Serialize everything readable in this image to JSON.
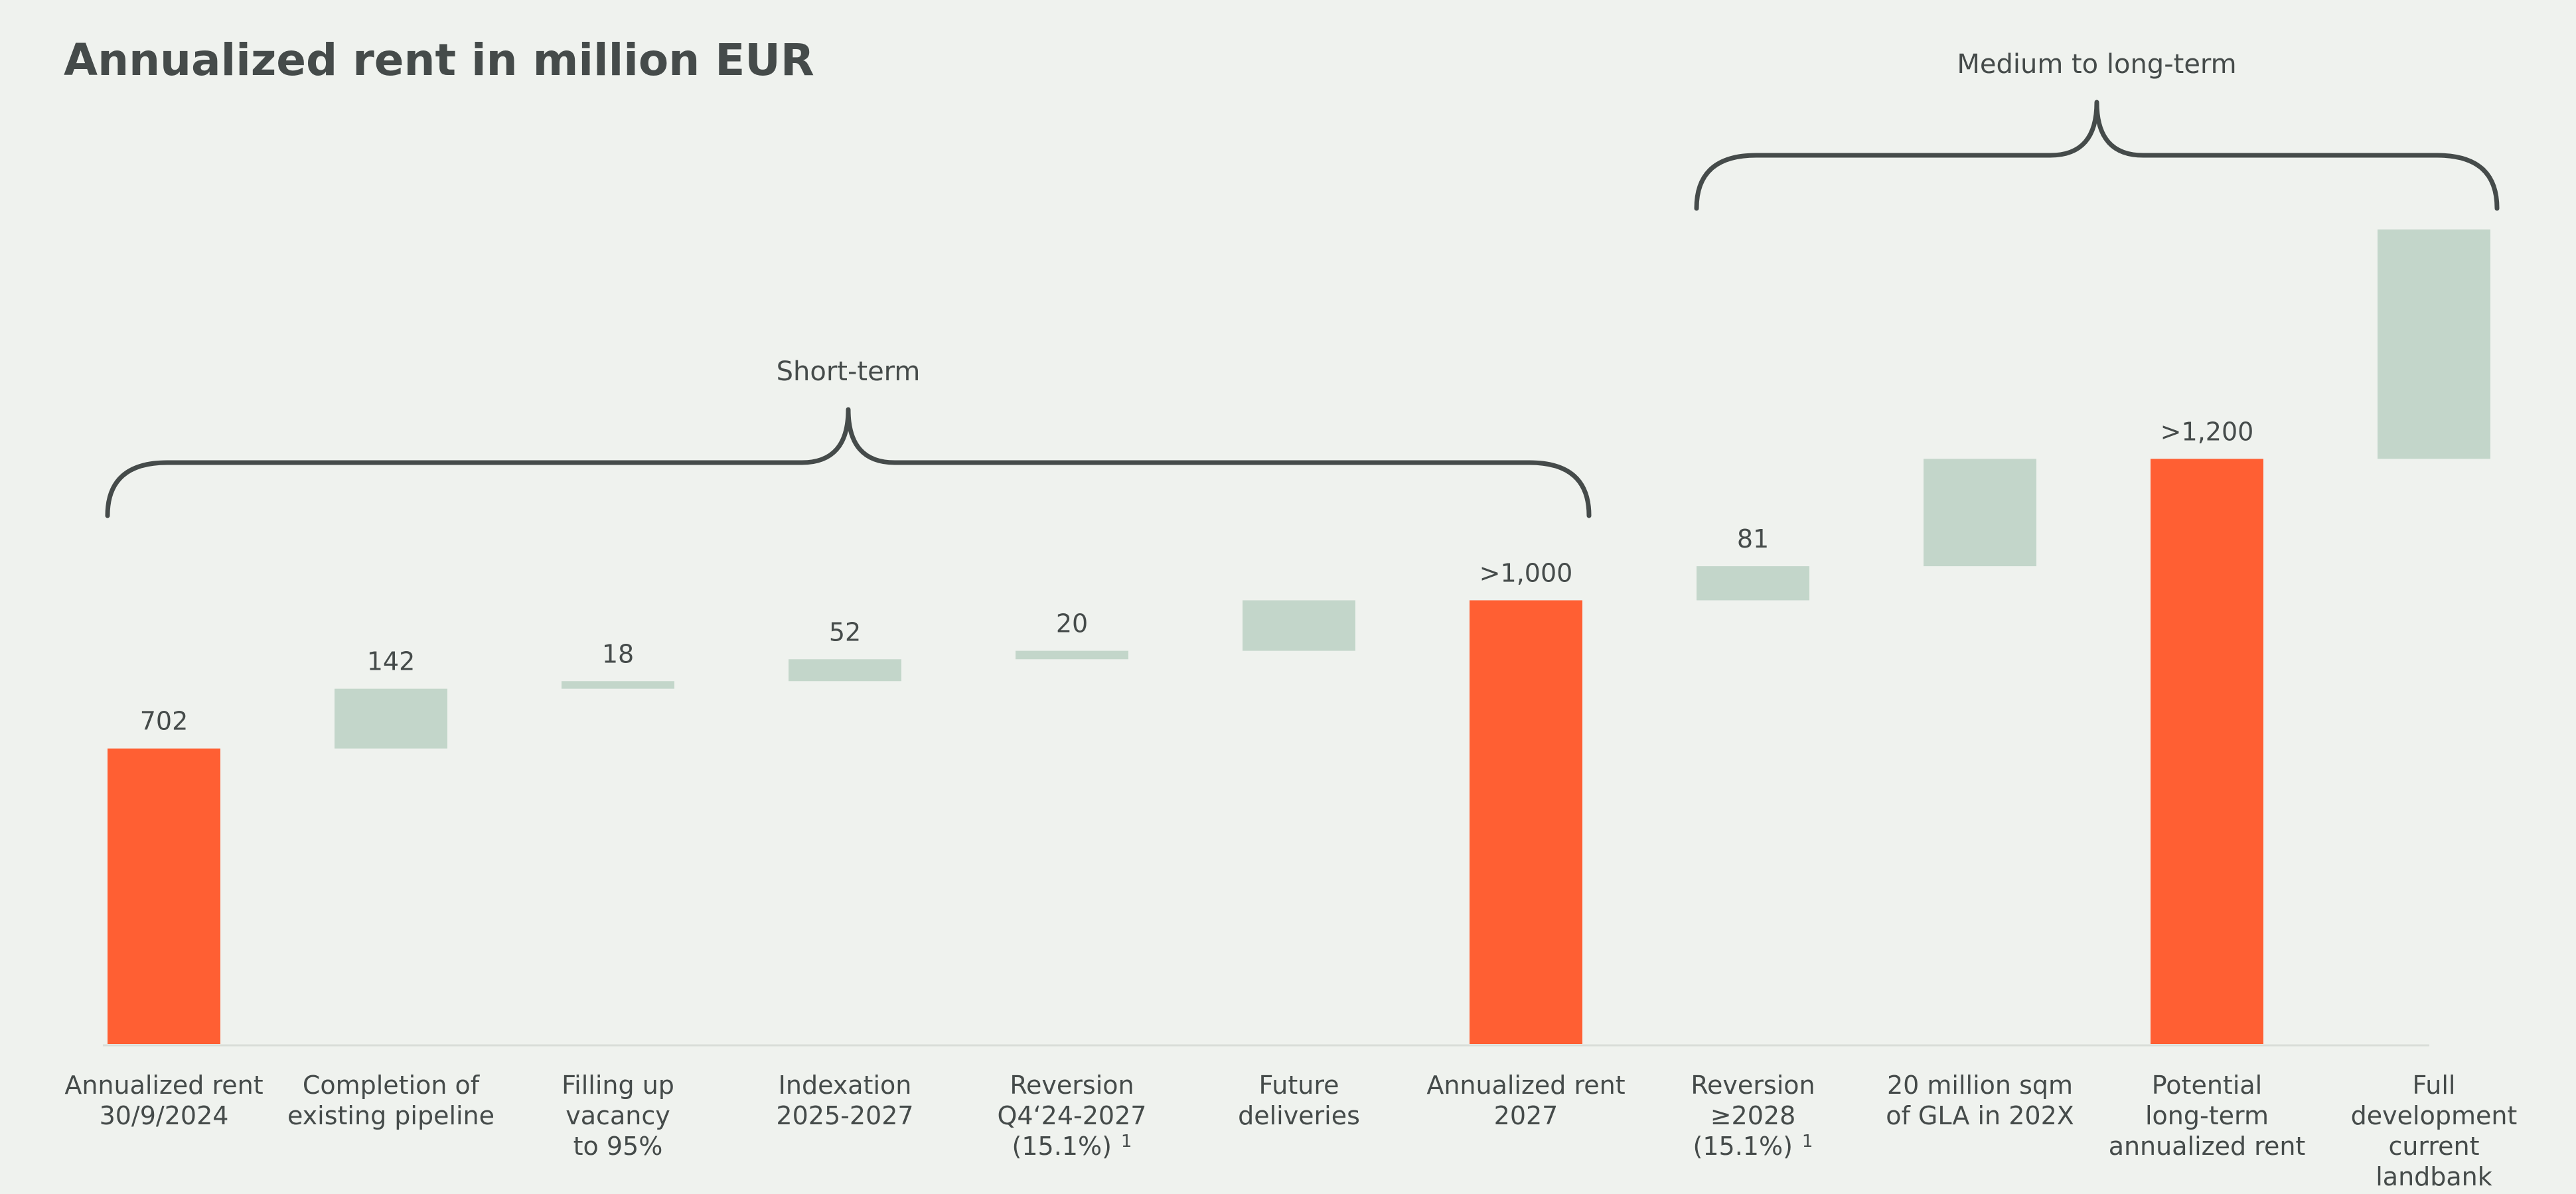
{
  "chart_data": {
    "type": "bar",
    "subtype": "waterfall",
    "title": "Annualized rent in million EUR",
    "categories": [
      [
        "Annualized rent",
        "30/9/2024"
      ],
      [
        "Completion of",
        "existing pipeline"
      ],
      [
        "Filling up",
        "vacancy",
        "to 95%"
      ],
      [
        "Indexation",
        "2025-2027"
      ],
      [
        "Reversion",
        "Q4‘24-2027",
        "(15.1%)"
      ],
      [
        "Future",
        "deliveries"
      ],
      [
        "Annualized rent",
        "2027"
      ],
      [
        "Reversion",
        "≥2028",
        "(15.1%)"
      ],
      [
        "20 million sqm",
        "of GLA in 202X"
      ],
      [
        "Potential",
        "long-term",
        "annualized rent"
      ],
      [
        "Full",
        "development",
        "current",
        "landbank"
      ]
    ],
    "footnote_marks": [
      "",
      "",
      "",
      "",
      "1",
      "",
      "",
      "1",
      "",
      "",
      ""
    ],
    "bars": [
      {
        "kind": "total",
        "base": 0,
        "value": 702,
        "label": "702"
      },
      {
        "kind": "delta",
        "base": 702,
        "value": 142,
        "label": "142"
      },
      {
        "kind": "delta",
        "base": 844,
        "value": 18,
        "label": "18"
      },
      {
        "kind": "delta",
        "base": 862,
        "value": 52,
        "label": "52"
      },
      {
        "kind": "delta",
        "base": 914,
        "value": 20,
        "label": "20"
      },
      {
        "kind": "delta",
        "base": 934,
        "value": 120,
        "label": ""
      },
      {
        "kind": "total",
        "base": 0,
        "value": 1054,
        "label": ">1,000"
      },
      {
        "kind": "delta",
        "base": 1054,
        "value": 81,
        "label": "81"
      },
      {
        "kind": "delta",
        "base": 1135,
        "value": 255,
        "label": ""
      },
      {
        "kind": "total",
        "base": 0,
        "value": 1390,
        "label": ">1,200"
      },
      {
        "kind": "delta",
        "base": 1390,
        "value": 545,
        "label": ""
      }
    ],
    "groups": [
      {
        "label": "Short-term",
        "from": 0,
        "to": 6
      },
      {
        "label": "Medium to long-term",
        "from": 7,
        "to": 10
      }
    ],
    "colors": {
      "total": "#ff5f33",
      "delta": "#c3d6ca",
      "text": "#454b4a",
      "axis": "#d9ddd8",
      "bracket": "#454b4a"
    },
    "ylim": [
      0,
      2480
    ],
    "grid": false,
    "legend": "none"
  }
}
